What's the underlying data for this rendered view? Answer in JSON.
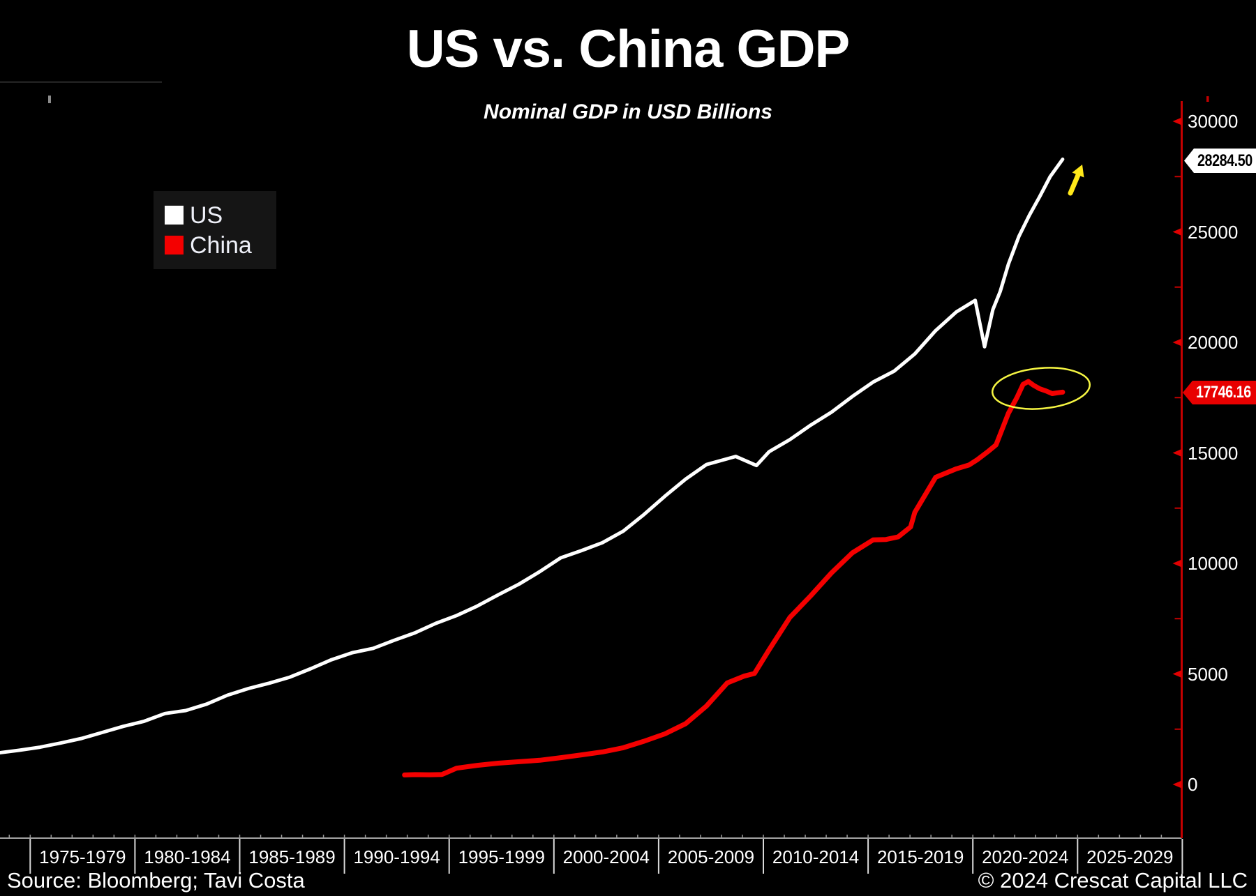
{
  "title": "US vs. China GDP",
  "subtitle": "Nominal GDP in USD Billions",
  "source": "Source: Bloomberg; Tavi Costa",
  "copyright": "© 2024 Crescat Capital LLC",
  "legend": {
    "position": "top-left",
    "items": [
      {
        "label": "US",
        "color": "#ffffff"
      },
      {
        "label": "China",
        "color": "#f40000"
      }
    ]
  },
  "price_labels": {
    "us": {
      "text": "28284.50",
      "value": 28284.5,
      "bg": "#ffffff",
      "fg": "#000000"
    },
    "china": {
      "text": "17746.16",
      "value": 17746.16,
      "bg": "#e80000",
      "fg": "#ffffff"
    }
  },
  "y_axis": {
    "side": "right",
    "axis_color": "#c40000",
    "label_color": "#ffffff",
    "ticks": [
      {
        "label": "30000",
        "value": 30000
      },
      {
        "label": "25000",
        "value": 25000
      },
      {
        "label": "20000",
        "value": 20000
      },
      {
        "label": "15000",
        "value": 15000
      },
      {
        "label": "10000",
        "value": 10000
      },
      {
        "label": "5000",
        "value": 5000
      },
      {
        "label": "0",
        "value": 0
      }
    ],
    "minor_ticks": [
      27500,
      22500,
      17500,
      12500,
      7500,
      2500
    ]
  },
  "x_axis": {
    "labels": [
      "1975-1979",
      "1980-1984",
      "1985-1989",
      "1990-1994",
      "1995-1999",
      "2000-2004",
      "2005-2009",
      "2010-2014",
      "2015-2019",
      "2020-2024",
      "2025-2029"
    ]
  },
  "annotations": {
    "ellipse_color": "#f5f542",
    "arrow_color": "#ffe81a",
    "ellipse_meaning": "highlight around China GDP stagnation",
    "arrow_meaning": "US GDP accelerating higher"
  },
  "chart_data": {
    "type": "line",
    "title": "US vs. China GDP",
    "subtitle": "Nominal GDP in USD Billions",
    "xlabel": "",
    "ylabel": "Nominal GDP (USD Billions)",
    "ylim": [
      0,
      31000
    ],
    "x_range": [
      1973,
      2029
    ],
    "grid": false,
    "background": "#000000",
    "legend_position": "top-left",
    "series": [
      {
        "name": "US",
        "color": "#ffffff",
        "last_value": 28284.5,
        "points": [
          [
            1973,
            1425
          ],
          [
            1974,
            1545
          ],
          [
            1975,
            1685
          ],
          [
            1976,
            1873
          ],
          [
            1977,
            2082
          ],
          [
            1978,
            2352
          ],
          [
            1979,
            2627
          ],
          [
            1980,
            2857
          ],
          [
            1981,
            3207
          ],
          [
            1982,
            3344
          ],
          [
            1983,
            3634
          ],
          [
            1984,
            4038
          ],
          [
            1985,
            4339
          ],
          [
            1986,
            4580
          ],
          [
            1987,
            4855
          ],
          [
            1988,
            5236
          ],
          [
            1989,
            5642
          ],
          [
            1990,
            5963
          ],
          [
            1991,
            6158
          ],
          [
            1992,
            6520
          ],
          [
            1993,
            6859
          ],
          [
            1994,
            7287
          ],
          [
            1995,
            7640
          ],
          [
            1996,
            8073
          ],
          [
            1997,
            8578
          ],
          [
            1998,
            9063
          ],
          [
            1999,
            9631
          ],
          [
            2000,
            10251
          ],
          [
            2001,
            10582
          ],
          [
            2002,
            10936
          ],
          [
            2003,
            11458
          ],
          [
            2004,
            12214
          ],
          [
            2005,
            13037
          ],
          [
            2006,
            13815
          ],
          [
            2007,
            14474
          ],
          [
            2008.4,
            14840
          ],
          [
            2009.4,
            14430
          ],
          [
            2010,
            15049
          ],
          [
            2011,
            15600
          ],
          [
            2012,
            16254
          ],
          [
            2013,
            16843
          ],
          [
            2014,
            17551
          ],
          [
            2015,
            18206
          ],
          [
            2016,
            18695
          ],
          [
            2017,
            19477
          ],
          [
            2018,
            20533
          ],
          [
            2019,
            21381
          ],
          [
            2019.9,
            21900
          ],
          [
            2020.35,
            19800
          ],
          [
            2020.75,
            21480
          ],
          [
            2021.1,
            22300
          ],
          [
            2021.5,
            23550
          ],
          [
            2022,
            24800
          ],
          [
            2022.5,
            25750
          ],
          [
            2023,
            26600
          ],
          [
            2023.5,
            27500
          ],
          [
            2024.1,
            28284.5
          ]
        ]
      },
      {
        "name": "China",
        "color": "#f40000",
        "last_value": 17746.16,
        "points": [
          [
            1992.5,
            430
          ],
          [
            1993,
            445
          ],
          [
            1993.7,
            437
          ],
          [
            1994.3,
            452
          ],
          [
            1995,
            734
          ],
          [
            1996,
            864
          ],
          [
            1997,
            961
          ],
          [
            1998,
            1029
          ],
          [
            1999,
            1094
          ],
          [
            2000,
            1211
          ],
          [
            2001,
            1339
          ],
          [
            2002,
            1471
          ],
          [
            2003,
            1660
          ],
          [
            2004,
            1955
          ],
          [
            2005,
            2286
          ],
          [
            2006,
            2752
          ],
          [
            2007,
            3550
          ],
          [
            2008,
            4594
          ],
          [
            2008.8,
            4900
          ],
          [
            2009.3,
            5020
          ],
          [
            2010,
            6087
          ],
          [
            2011,
            7552
          ],
          [
            2012,
            8532
          ],
          [
            2013,
            9570
          ],
          [
            2014,
            10476
          ],
          [
            2015,
            11062
          ],
          [
            2015.6,
            11080
          ],
          [
            2016.2,
            11200
          ],
          [
            2016.8,
            11650
          ],
          [
            2017,
            12310
          ],
          [
            2018,
            13895
          ],
          [
            2019,
            14280
          ],
          [
            2019.6,
            14450
          ],
          [
            2020,
            14690
          ],
          [
            2020.5,
            15050
          ],
          [
            2020.9,
            15360
          ],
          [
            2021.5,
            16800
          ],
          [
            2021.9,
            17500
          ],
          [
            2022.2,
            18100
          ],
          [
            2022.45,
            18230
          ],
          [
            2022.7,
            18060
          ],
          [
            2023,
            17900
          ],
          [
            2023.3,
            17800
          ],
          [
            2023.6,
            17680
          ],
          [
            2023.85,
            17720
          ],
          [
            2024.1,
            17746.16
          ]
        ]
      }
    ]
  }
}
